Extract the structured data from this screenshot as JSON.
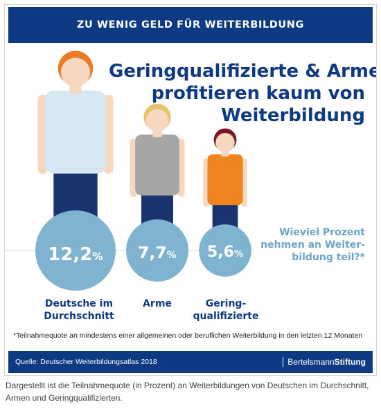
{
  "banner": {
    "title": "ZU WENIG GELD FÜR WEITERBILDUNG"
  },
  "headline": {
    "line1": "Geringqualifizierte & Arme",
    "line2": "profitieren kaum von",
    "line3": "Weiterbildung"
  },
  "question": {
    "line1": "Wieviel Prozent",
    "line2": "nehmen an Weiter-",
    "line3": "bildung teil?*"
  },
  "chart_data": {
    "type": "bar",
    "categories": [
      "Deutsche im Durchschnitt",
      "Arme",
      "Gering-qualifizierte"
    ],
    "category_lines": [
      [
        "Deutsche im",
        "Durchschnitt"
      ],
      [
        "Arme"
      ],
      [
        "Gering-",
        "qualifizierte"
      ]
    ],
    "values": [
      12.2,
      7.7,
      5.6
    ],
    "value_labels": [
      "12,2",
      "7,7",
      "5,6"
    ],
    "unit": "%",
    "title": "Geringqualifizierte & Arme profitieren kaum von Weiterbildung",
    "xlabel": "",
    "ylabel": "Wieviel Prozent nehmen an Weiterbildung teil?*"
  },
  "colors": {
    "navy": "#0d3a82",
    "circle": "#7fb3d0",
    "question": "#6aa6c6",
    "shirt_light": "#d7e8f3",
    "shirt_gray": "#a6a6a6",
    "shirt_orange": "#f0841e",
    "pants": "#1a3470",
    "hair_orange": "#ed7b26",
    "hair_blond": "#e6c36a",
    "hair_maroon": "#7b1624",
    "skin": "#f6d7c0"
  },
  "footnote": "*Teilnahmequote an mindestens einer allgemeinen oder beruflichen Weiterbildung in den letzten 12 Monaten",
  "footer": {
    "source": "Quelle: Deutscher Weiterbildungsatlas 2018",
    "brand_regular": "Bertelsmann",
    "brand_bold": "Stiftung"
  },
  "caption": "Dargestellt ist die Teilnahmequote (in Prozent) an Weiterbildungen von Deutschen im Durchschnitt, Armen und Geringqualifizierten."
}
